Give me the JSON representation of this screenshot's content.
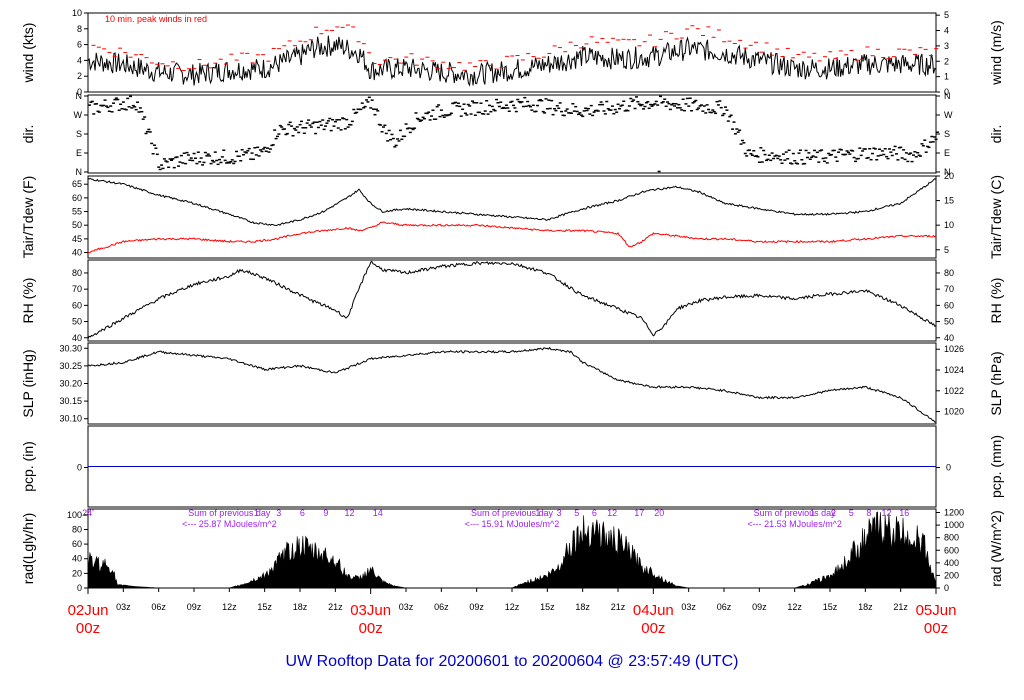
{
  "chart_data": {
    "type": "line",
    "title": "UW Rooftop Data for 20200601  to  20200604 @ 23:57:49  (UTC)",
    "time_axis": {
      "hour_ticks": [
        "03z",
        "06z",
        "09z",
        "12z",
        "15z",
        "18z",
        "21z",
        "03z",
        "06z",
        "09z",
        "12z",
        "15z",
        "18z",
        "21z",
        "03z",
        "06z",
        "09z",
        "12z",
        "15z",
        "18z",
        "21z"
      ],
      "date_markers": [
        {
          "date": "02Jun",
          "hour": "00z"
        },
        {
          "date": "03Jun",
          "hour": "00z"
        },
        {
          "date": "04Jun",
          "hour": "00z"
        },
        {
          "date": "05Jun",
          "hour": "00z"
        }
      ],
      "range_hours": [
        0,
        72
      ]
    },
    "panels": [
      {
        "id": "wind",
        "left_label": "wind (kts)",
        "right_label": "wind (m/s)",
        "left_ticks": [
          "0",
          "2",
          "4",
          "6",
          "8",
          "10"
        ],
        "left_range": [
          0,
          10
        ],
        "right_ticks": [
          "0",
          "1",
          "2",
          "3",
          "4",
          "5"
        ],
        "right_range": [
          0,
          5.14
        ],
        "annotation": "10 min. peak winds in red",
        "series": [
          {
            "name": "wind",
            "color": "#000000",
            "x": [
              0,
              3,
              6,
              9,
              12,
              15,
              18,
              19,
              21,
              23,
              24,
              27,
              30,
              33,
              36,
              39,
              42,
              45,
              48,
              51,
              54,
              57,
              60,
              63,
              66,
              69,
              72
            ],
            "y": [
              4.0,
              3.5,
              2.5,
              2.2,
              2.8,
              3.0,
              4.5,
              5.5,
              6.0,
              5.0,
              2.8,
              3.0,
              2.5,
              2.2,
              2.8,
              3.5,
              4.5,
              4.2,
              4.5,
              5.5,
              5.0,
              4.0,
              3.0,
              3.0,
              3.5,
              3.5,
              3.5
            ]
          },
          {
            "name": "10 min. peak winds",
            "color": "#ff0000",
            "x": [
              0,
              3,
              6,
              9,
              12,
              15,
              18,
              19,
              21,
              23,
              24,
              27,
              30,
              33,
              36,
              39,
              42,
              45,
              48,
              51,
              54,
              57,
              60,
              63,
              66,
              69,
              72
            ],
            "y": [
              5.8,
              5.0,
              3.8,
              3.3,
              4.0,
              4.5,
              6.5,
              7.5,
              8.5,
              7.0,
              4.0,
              4.2,
              3.6,
              3.2,
              4.0,
              5.0,
              6.5,
              6.0,
              6.5,
              8.0,
              7.0,
              5.8,
              4.4,
              4.3,
              5.0,
              5.0,
              5.0
            ]
          }
        ]
      },
      {
        "id": "dir",
        "left_label": "dir.",
        "right_label": "dir.",
        "left_ticks": [
          "N",
          "E",
          "S",
          "W",
          "N"
        ],
        "right_ticks": [
          "N",
          "E",
          "S",
          "W",
          "N"
        ],
        "range": [
          0,
          360
        ],
        "series": [
          {
            "name": "direction",
            "color": "#000000",
            "x": [
              0,
              2,
              4,
              6,
              8,
              10,
              12,
              14,
              15,
              16,
              18,
              20,
              22,
              23,
              24,
              25,
              26,
              27,
              28,
              30,
              32,
              34,
              36,
              38,
              40,
              42,
              44,
              46,
              48,
              50,
              52,
              54,
              56,
              58,
              60,
              62,
              64,
              66,
              68,
              70,
              72
            ],
            "y": [
              300,
              320,
              330,
              30,
              60,
              70,
              70,
              80,
              100,
              200,
              210,
              220,
              240,
              290,
              330,
              200,
              140,
              210,
              260,
              290,
              300,
              310,
              320,
              320,
              300,
              290,
              300,
              320,
              330,
              320,
              310,
              300,
              80,
              80,
              70,
              70,
              80,
              90,
              90,
              80,
              170
            ]
          }
        ]
      },
      {
        "id": "temp",
        "left_label": "Tair/Tdew (F)",
        "right_label": "Tair/Tdew (C)",
        "left_ticks": [
          "40",
          "45",
          "50",
          "55",
          "60",
          "65"
        ],
        "left_range": [
          38,
          68
        ],
        "right_ticks": [
          "5",
          "10",
          "15",
          "20"
        ],
        "right_range": [
          3.33,
          20
        ],
        "series": [
          {
            "name": "Tair",
            "color": "#000000",
            "x": [
              0,
              3,
              6,
              9,
              12,
              14,
              16,
              18,
              20,
              22,
              23,
              24,
              25,
              27,
              30,
              33,
              36,
              39,
              42,
              45,
              47,
              48,
              50,
              52,
              54,
              57,
              60,
              63,
              66,
              69,
              72
            ],
            "y": [
              67,
              65,
              61,
              58,
              54,
              51,
              50,
              52,
              55,
              60,
              63,
              58,
              55,
              56,
              55,
              54,
              53,
              52,
              56,
              59,
              62,
              63,
              64,
              62,
              58,
              56,
              54,
              54,
              55,
              58,
              67
            ]
          },
          {
            "name": "Tdew",
            "color": "#ff0000",
            "x": [
              0,
              3,
              6,
              9,
              12,
              14,
              16,
              18,
              20,
              22,
              23,
              24,
              25,
              27,
              30,
              33,
              36,
              39,
              42,
              45,
              46,
              47,
              48,
              50,
              52,
              54,
              57,
              60,
              63,
              66,
              69,
              72
            ],
            "y": [
              40,
              44,
              45,
              45,
              44,
              44,
              45,
              47,
              48,
              49,
              48,
              49,
              51,
              50,
              50,
              50,
              49,
              48,
              48,
              47,
              42,
              44,
              47,
              46,
              45,
              45,
              44,
              44,
              44,
              45,
              46,
              46
            ]
          }
        ]
      },
      {
        "id": "rh",
        "left_label": "RH (%)",
        "right_label": "RH (%)",
        "left_ticks": [
          "40",
          "50",
          "60",
          "70",
          "80"
        ],
        "left_range": [
          38,
          88
        ],
        "right_ticks": [
          "40",
          "50",
          "60",
          "70",
          "80"
        ],
        "right_range": [
          38,
          88
        ],
        "series": [
          {
            "name": "RH",
            "color": "#000000",
            "x": [
              0,
              3,
              6,
              9,
              12,
              13,
              15,
              17,
              19,
              21,
              22,
              23,
              24,
              25,
              27,
              30,
              33,
              36,
              39,
              42,
              45,
              47,
              48,
              49,
              50,
              52,
              54,
              57,
              60,
              63,
              66,
              69,
              72
            ],
            "y": [
              40,
              52,
              64,
              73,
              78,
              82,
              77,
              70,
              63,
              57,
              52,
              70,
              87,
              82,
              80,
              84,
              86,
              86,
              80,
              66,
              58,
              52,
              42,
              48,
              58,
              63,
              65,
              66,
              64,
              67,
              69,
              60,
              47
            ]
          }
        ]
      },
      {
        "id": "slp",
        "left_label": "SLP (inHg)",
        "right_label": "SLP (hPa)",
        "left_ticks": [
          "30.10",
          "30.15",
          "30.20",
          "30.25",
          "30.30"
        ],
        "left_range": [
          30.085,
          30.315
        ],
        "right_ticks": [
          "1020",
          "1022",
          "1024",
          "1026"
        ],
        "right_range": [
          1018.8,
          1026.6
        ],
        "series": [
          {
            "name": "SLP",
            "color": "#000000",
            "x": [
              0,
              3,
              6,
              9,
              12,
              15,
              18,
              21,
              24,
              27,
              30,
              33,
              36,
              39,
              41,
              42,
              45,
              48,
              51,
              54,
              57,
              60,
              63,
              66,
              69,
              72
            ],
            "y": [
              30.25,
              30.26,
              30.29,
              30.28,
              30.27,
              30.24,
              30.25,
              30.23,
              30.27,
              30.28,
              30.29,
              30.29,
              30.29,
              30.3,
              30.29,
              30.26,
              30.21,
              30.19,
              30.19,
              30.18,
              30.16,
              30.16,
              30.18,
              30.19,
              30.16,
              30.09
            ]
          }
        ]
      },
      {
        "id": "pcp",
        "left_label": "pcp. (in)",
        "right_label": "pcp. (mm)",
        "left_ticks": [
          "0"
        ],
        "right_ticks": [
          "0"
        ],
        "left_range": [
          -1,
          1
        ],
        "series": [
          {
            "name": "pcp",
            "color": "#0000cc",
            "x": [
              0,
              72
            ],
            "y": [
              0,
              0
            ]
          }
        ]
      },
      {
        "id": "rad",
        "left_label": "rad(Lgly/hr)",
        "right_label": "rad (W/m^2)",
        "left_ticks": [
          "0",
          "20",
          "40",
          "60",
          "80",
          "100"
        ],
        "left_range": [
          0,
          108
        ],
        "right_ticks": [
          "0",
          "200",
          "400",
          "600",
          "800",
          "1000",
          "1200"
        ],
        "right_range": [
          0,
          1256
        ],
        "series": [
          {
            "name": "radiation",
            "color": "#000000",
            "x": [
              0,
              2,
              2.5,
              4,
              6,
              12,
              13,
              15,
              16,
              17,
              18,
              19,
              20,
              21,
              22,
              23,
              24,
              25,
              26,
              27,
              36,
              37,
              39,
              40,
              41,
              42,
              43,
              44,
              45,
              46,
              47,
              48,
              49,
              50,
              51,
              60,
              61,
              63,
              64,
              65,
              66,
              67,
              68,
              69,
              70,
              71,
              72
            ],
            "y": [
              45,
              35,
              5,
              2,
              0,
              0,
              5,
              20,
              40,
              60,
              70,
              60,
              55,
              45,
              20,
              15,
              30,
              10,
              3,
              0,
              0,
              8,
              20,
              35,
              75,
              90,
              100,
              80,
              75,
              60,
              35,
              25,
              12,
              3,
              0,
              0,
              5,
              20,
              35,
              60,
              80,
              100,
              95,
              90,
              85,
              70,
              5
            ]
          }
        ],
        "annotations": [
          {
            "text": "Sum of previous day",
            "day": 1
          },
          {
            "text": "<--- 25.87 MJoules/m^2",
            "day": 1
          },
          {
            "text": "Sum of previous day",
            "day": 2
          },
          {
            "text": "<--- 15.91 MJoules/m^2",
            "day": 2
          },
          {
            "text": "Sum of previous day",
            "day": 3
          },
          {
            "text": "<--- 21.53 MJoules/m^2",
            "day": 3
          }
        ],
        "hour_marks": [
          {
            "label": "24'",
            "hour": 0
          },
          {
            "label": "1",
            "hour": 14.3
          },
          {
            "label": "3",
            "hour": 16.2
          },
          {
            "label": "6",
            "hour": 18.2
          },
          {
            "label": "9",
            "hour": 20.2
          },
          {
            "label": "12",
            "hour": 22.2
          },
          {
            "label": "14",
            "hour": 24.6
          },
          {
            "label": "1",
            "hour": 38.2
          },
          {
            "label": "3",
            "hour": 40
          },
          {
            "label": "5",
            "hour": 41.5
          },
          {
            "label": "6",
            "hour": 43
          },
          {
            "label": "12",
            "hour": 44.5
          },
          {
            "label": "17",
            "hour": 46.8
          },
          {
            "label": "20",
            "hour": 48.5
          },
          {
            "label": "1",
            "hour": 61.5
          },
          {
            "label": "2",
            "hour": 63.3
          },
          {
            "label": "5",
            "hour": 64.8
          },
          {
            "label": "8",
            "hour": 66.3
          },
          {
            "label": "12",
            "hour": 67.8
          },
          {
            "label": "16",
            "hour": 69.3
          }
        ]
      }
    ]
  }
}
